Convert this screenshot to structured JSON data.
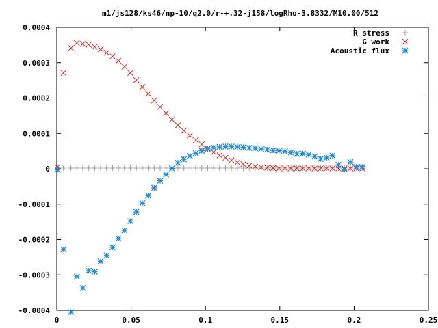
{
  "chart_data": {
    "type": "scatter",
    "title": "m1/js128/ks46/np-10/q2.0/r-+.32-j158/logRho-3.8332/M10.00/512",
    "xlabel": "",
    "ylabel": "",
    "xlim": [
      0,
      0.25
    ],
    "ylim": [
      -0.0004,
      0.0004
    ],
    "xticks": [
      0,
      0.05,
      0.1,
      0.15,
      0.2,
      0.25
    ],
    "xtick_labels": [
      "0",
      "0.05",
      "0.1",
      "0.15",
      "0.2",
      "0.25"
    ],
    "yticks": [
      0.0004,
      0.0003,
      0.0002,
      0.0001,
      0,
      -0.0001,
      -0.0002,
      -0.0003,
      -0.0004
    ],
    "ytick_labels": [
      "0.0004",
      "0.0003",
      "0.0002",
      "0.0001",
      "0",
      "-0.0001",
      "-0.0002",
      "-0.0003",
      "-0.0004"
    ],
    "grid": false,
    "legend_position": "top-right",
    "series": [
      {
        "name": "R stress",
        "marker": "plus",
        "color": "#a0a0a0",
        "x": [
          0.0005,
          0.0045,
          0.0095,
          0.0135,
          0.0175,
          0.0215,
          0.0255,
          0.0295,
          0.0335,
          0.0375,
          0.0415,
          0.0455,
          0.0495,
          0.0535,
          0.0575,
          0.0615,
          0.0655,
          0.0695,
          0.0735,
          0.0775,
          0.0815,
          0.0855,
          0.0895,
          0.0935,
          0.0975,
          0.1015,
          0.1055,
          0.1095,
          0.1135,
          0.1175,
          0.1215,
          0.1255,
          0.1295,
          0.1335,
          0.1375,
          0.1415,
          0.1455,
          0.1495,
          0.1535,
          0.1575,
          0.1615,
          0.1655,
          0.1695,
          0.1735,
          0.1775,
          0.1815,
          0.1855,
          0.1895,
          0.1935,
          0.1975,
          0.2015,
          0.2055
        ],
        "y": [
          2e-06,
          2e-06,
          2e-06,
          2e-06,
          2e-06,
          2e-06,
          2e-06,
          2e-06,
          2e-06,
          2e-06,
          2e-06,
          2e-06,
          2e-06,
          2e-06,
          2e-06,
          2e-06,
          2e-06,
          2e-06,
          2e-06,
          2e-06,
          2e-06,
          2e-06,
          2e-06,
          2e-06,
          2e-06,
          2e-06,
          2e-06,
          2e-06,
          2e-06,
          2e-06,
          2e-06,
          2e-06,
          2e-06,
          2e-06,
          2e-06,
          2e-06,
          2e-06,
          2e-06,
          2e-06,
          2e-06,
          2e-06,
          2e-06,
          2e-06,
          2e-06,
          2e-06,
          2e-06,
          2e-06,
          2e-06,
          2e-06,
          2e-06,
          2e-06,
          2e-06
        ]
      },
      {
        "name": "G work",
        "marker": "cross",
        "color": "#e0302a",
        "x": [
          0.0005,
          0.0045,
          0.0095,
          0.0135,
          0.0175,
          0.0215,
          0.0255,
          0.0295,
          0.0335,
          0.0375,
          0.0415,
          0.0455,
          0.0495,
          0.0535,
          0.0575,
          0.0615,
          0.0655,
          0.0695,
          0.0735,
          0.0775,
          0.0815,
          0.0855,
          0.0895,
          0.0935,
          0.0975,
          0.1015,
          0.1055,
          0.1095,
          0.1135,
          0.1175,
          0.1215,
          0.1255,
          0.1295,
          0.1335,
          0.1375,
          0.1415,
          0.1455,
          0.1495,
          0.1535,
          0.1575,
          0.1615,
          0.1655,
          0.1695,
          0.1735,
          0.1775,
          0.1815,
          0.1855,
          0.1895,
          0.1935,
          0.1975,
          0.2015,
          0.2055
        ],
        "y": [
          5e-06,
          0.000271,
          0.000341,
          0.000356,
          0.000353,
          0.000351,
          0.000345,
          0.000338,
          0.000328,
          0.000318,
          0.000305,
          0.000289,
          0.000271,
          0.000251,
          0.000231,
          0.000212,
          0.000193,
          0.000175,
          0.000157,
          0.000139,
          0.000123,
          0.000108,
          9.4e-05,
          8.1e-05,
          6.9e-05,
          5.8e-05,
          4.7e-05,
          3.8e-05,
          3.1e-05,
          2.4e-05,
          1.8e-05,
          1.3e-05,
          9e-06,
          6e-06,
          4e-06,
          3e-06,
          2e-06,
          1e-06,
          1e-06,
          1e-06,
          1e-06,
          1e-06,
          1e-06,
          1e-06,
          1e-06,
          1e-06,
          1e-06,
          1e-06,
          1e-06,
          1e-06,
          1e-06,
          1e-06
        ]
      },
      {
        "name": "Acoustic flux",
        "marker": "asterisk",
        "color": "#1e88d8",
        "x": [
          0.0005,
          0.0045,
          0.0095,
          0.0135,
          0.0175,
          0.0215,
          0.0255,
          0.0295,
          0.0335,
          0.0375,
          0.0415,
          0.0455,
          0.0495,
          0.0535,
          0.0575,
          0.0615,
          0.0655,
          0.0695,
          0.0735,
          0.0775,
          0.0815,
          0.0855,
          0.0895,
          0.0935,
          0.0975,
          0.1015,
          0.1055,
          0.1095,
          0.1135,
          0.1175,
          0.1215,
          0.1255,
          0.1295,
          0.1335,
          0.1375,
          0.1415,
          0.1455,
          0.1495,
          0.1535,
          0.1575,
          0.1615,
          0.1655,
          0.1695,
          0.1735,
          0.1775,
          0.1815,
          0.1855,
          0.1895,
          0.1935,
          0.1975,
          0.2015,
          0.2055
        ],
        "y": [
          -3e-06,
          -0.000228,
          -0.000405,
          -0.000305,
          -0.000337,
          -0.000288,
          -0.000291,
          -0.000262,
          -0.000245,
          -0.000222,
          -0.000197,
          -0.000174,
          -0.000148,
          -0.000122,
          -9.7e-05,
          -7.6e-05,
          -5.4e-05,
          -3.4e-05,
          -1.6e-05,
          1e-06,
          1.7e-05,
          2.7e-05,
          3.6e-05,
          4.4e-05,
          5.1e-05,
          5.6e-05,
          6e-05,
          6.2e-05,
          6.3e-05,
          6.3e-05,
          6.2e-05,
          6.1e-05,
          5.9e-05,
          5.8e-05,
          5.6e-05,
          5.4e-05,
          5.2e-05,
          5.1e-05,
          4.9e-05,
          4.6e-05,
          4.2e-05,
          4.3e-05,
          4e-05,
          3.5e-05,
          2.8e-05,
          3.1e-05,
          3.7e-05,
          1.1e-05,
          -2e-06,
          1.9e-05,
          5e-06,
          5e-06
        ]
      }
    ]
  }
}
